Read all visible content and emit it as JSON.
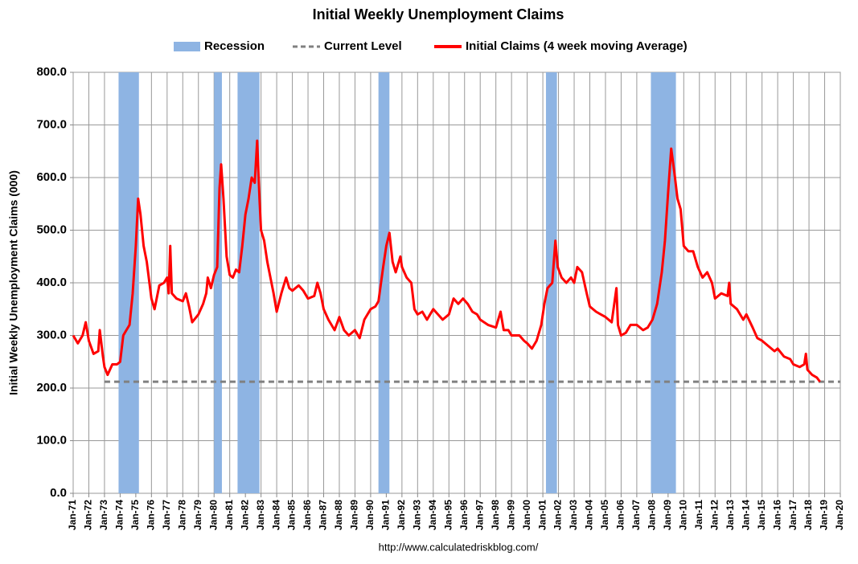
{
  "chart_data": {
    "type": "line",
    "title": "Initial Weekly Unemployment Claims",
    "y_label": "Initial Weekly Unemployment Claims (000)",
    "source": "http://www.calculatedriskblog.com/",
    "xlim": [
      1971,
      2020
    ],
    "xticks": [
      {
        "value": 1971,
        "label": "Jan-71"
      },
      {
        "value": 1972,
        "label": "Jan-72"
      },
      {
        "value": 1973,
        "label": "Jan-73"
      },
      {
        "value": 1974,
        "label": "Jan-74"
      },
      {
        "value": 1975,
        "label": "Jan-75"
      },
      {
        "value": 1976,
        "label": "Jan-76"
      },
      {
        "value": 1977,
        "label": "Jan-77"
      },
      {
        "value": 1978,
        "label": "Jan-78"
      },
      {
        "value": 1979,
        "label": "Jan-79"
      },
      {
        "value": 1980,
        "label": "Jan-80"
      },
      {
        "value": 1981,
        "label": "Jan-81"
      },
      {
        "value": 1982,
        "label": "Jan-82"
      },
      {
        "value": 1983,
        "label": "Jan-83"
      },
      {
        "value": 1984,
        "label": "Jan-84"
      },
      {
        "value": 1985,
        "label": "Jan-85"
      },
      {
        "value": 1986,
        "label": "Jan-86"
      },
      {
        "value": 1987,
        "label": "Jan-87"
      },
      {
        "value": 1988,
        "label": "Jan-88"
      },
      {
        "value": 1989,
        "label": "Jan-89"
      },
      {
        "value": 1990,
        "label": "Jan-90"
      },
      {
        "value": 1991,
        "label": "Jan-91"
      },
      {
        "value": 1992,
        "label": "Jan-92"
      },
      {
        "value": 1993,
        "label": "Jan-93"
      },
      {
        "value": 1994,
        "label": "Jan-94"
      },
      {
        "value": 1995,
        "label": "Jan-95"
      },
      {
        "value": 1996,
        "label": "Jan-96"
      },
      {
        "value": 1997,
        "label": "Jan-97"
      },
      {
        "value": 1998,
        "label": "Jan-98"
      },
      {
        "value": 1999,
        "label": "Jan-99"
      },
      {
        "value": 2000,
        "label": "Jan-00"
      },
      {
        "value": 2001,
        "label": "Jan-01"
      },
      {
        "value": 2002,
        "label": "Jan-02"
      },
      {
        "value": 2003,
        "label": "Jan-03"
      },
      {
        "value": 2004,
        "label": "Jan-04"
      },
      {
        "value": 2005,
        "label": "Jan-05"
      },
      {
        "value": 2006,
        "label": "Jan-06"
      },
      {
        "value": 2007,
        "label": "Jan-07"
      },
      {
        "value": 2008,
        "label": "Jan-08"
      },
      {
        "value": 2009,
        "label": "Jan-09"
      },
      {
        "value": 2010,
        "label": "Jan-10"
      },
      {
        "value": 2011,
        "label": "Jan-11"
      },
      {
        "value": 2012,
        "label": "Jan-12"
      },
      {
        "value": 2013,
        "label": "Jan-13"
      },
      {
        "value": 2014,
        "label": "Jan-14"
      },
      {
        "value": 2015,
        "label": "Jan-15"
      },
      {
        "value": 2016,
        "label": "Jan-16"
      },
      {
        "value": 2017,
        "label": "Jan-17"
      },
      {
        "value": 2018,
        "label": "Jan-18"
      },
      {
        "value": 2019,
        "label": "Jan-19"
      },
      {
        "value": 2020,
        "label": "Jan-20"
      }
    ],
    "ylim": [
      0,
      800
    ],
    "yticks": [
      {
        "value": 0,
        "label": "0.0"
      },
      {
        "value": 100,
        "label": "100.0"
      },
      {
        "value": 200,
        "label": "200.0"
      },
      {
        "value": 300,
        "label": "300.0"
      },
      {
        "value": 400,
        "label": "400.0"
      },
      {
        "value": 500,
        "label": "500.0"
      },
      {
        "value": 600,
        "label": "600.0"
      },
      {
        "value": 700,
        "label": "700.0"
      },
      {
        "value": 800,
        "label": "800.0"
      }
    ],
    "grid": true,
    "recession": {
      "name": "Recession",
      "color": "#8eb4e3",
      "spans": [
        [
          1973.9,
          1975.2
        ],
        [
          1980.0,
          1980.5
        ],
        [
          1981.5,
          1982.9
        ],
        [
          1990.5,
          1991.2
        ],
        [
          2001.2,
          2001.9
        ],
        [
          2007.9,
          2009.5
        ]
      ]
    },
    "current_level": {
      "name": "Current Level",
      "color": "#808080",
      "value": 212,
      "start": 1973
    },
    "series": [
      {
        "name": "Initial Claims (4 week moving Average)",
        "color": "#ff0000",
        "x": [
          1971.0,
          1971.3,
          1971.6,
          1971.8,
          1972.0,
          1972.3,
          1972.6,
          1972.7,
          1972.9,
          1973.0,
          1973.2,
          1973.5,
          1973.8,
          1974.0,
          1974.2,
          1974.4,
          1974.6,
          1974.8,
          1975.0,
          1975.15,
          1975.3,
          1975.5,
          1975.7,
          1976.0,
          1976.2,
          1976.5,
          1976.8,
          1977.0,
          1977.1,
          1977.2,
          1977.3,
          1977.6,
          1978.0,
          1978.2,
          1978.4,
          1978.6,
          1979.0,
          1979.3,
          1979.5,
          1979.6,
          1979.8,
          1980.0,
          1980.2,
          1980.35,
          1980.45,
          1980.6,
          1980.8,
          1981.0,
          1981.2,
          1981.4,
          1981.6,
          1981.8,
          1982.0,
          1982.2,
          1982.4,
          1982.6,
          1982.75,
          1982.9,
          1983.0,
          1983.2,
          1983.4,
          1983.6,
          1983.8,
          1984.0,
          1984.3,
          1984.6,
          1984.8,
          1985.0,
          1985.4,
          1985.7,
          1986.0,
          1986.4,
          1986.6,
          1986.8,
          1987.0,
          1987.3,
          1987.7,
          1988.0,
          1988.3,
          1988.6,
          1989.0,
          1989.3,
          1989.6,
          1990.0,
          1990.3,
          1990.5,
          1990.8,
          1991.0,
          1991.2,
          1991.4,
          1991.6,
          1991.9,
          1992.0,
          1992.3,
          1992.6,
          1992.8,
          1993.0,
          1993.3,
          1993.6,
          1994.0,
          1994.3,
          1994.6,
          1995.0,
          1995.3,
          1995.6,
          1995.9,
          1996.2,
          1996.5,
          1996.8,
          1997.0,
          1997.5,
          1998.0,
          1998.3,
          1998.5,
          1998.8,
          1999.0,
          1999.5,
          1999.8,
          2000.0,
          2000.3,
          2000.6,
          2000.9,
          2001.1,
          2001.3,
          2001.6,
          2001.8,
          2001.95,
          2002.2,
          2002.5,
          2002.8,
          2003.0,
          2003.2,
          2003.5,
          2003.8,
          2004.0,
          2004.4,
          2004.7,
          2005.0,
          2005.4,
          2005.7,
          2005.8,
          2006.0,
          2006.3,
          2006.6,
          2007.0,
          2007.4,
          2007.7,
          2008.0,
          2008.3,
          2008.6,
          2008.8,
          2009.0,
          2009.2,
          2009.4,
          2009.6,
          2009.8,
          2010.0,
          2010.3,
          2010.6,
          2010.9,
          2011.2,
          2011.5,
          2011.8,
          2012.0,
          2012.4,
          2012.8,
          2012.9,
          2013.0,
          2013.4,
          2013.8,
          2014.0,
          2014.4,
          2014.7,
          2015.0,
          2015.4,
          2015.8,
          2016.0,
          2016.4,
          2016.8,
          2017.0,
          2017.4,
          2017.7,
          2017.8,
          2017.9,
          2018.2,
          2018.5,
          2018.7
        ],
        "values": [
          300,
          285,
          300,
          325,
          290,
          265,
          270,
          310,
          260,
          240,
          225,
          245,
          245,
          250,
          300,
          310,
          320,
          380,
          470,
          560,
          530,
          470,
          440,
          370,
          350,
          395,
          400,
          410,
          380,
          470,
          380,
          370,
          365,
          380,
          355,
          325,
          340,
          360,
          380,
          410,
          390,
          415,
          430,
          580,
          625,
          560,
          450,
          415,
          410,
          425,
          420,
          470,
          530,
          560,
          600,
          590,
          670,
          560,
          500,
          480,
          440,
          410,
          380,
          345,
          380,
          410,
          390,
          385,
          395,
          385,
          370,
          375,
          400,
          380,
          350,
          330,
          310,
          335,
          310,
          300,
          310,
          295,
          330,
          350,
          355,
          365,
          430,
          470,
          495,
          440,
          420,
          450,
          430,
          410,
          400,
          350,
          340,
          345,
          330,
          350,
          340,
          330,
          340,
          370,
          360,
          370,
          360,
          345,
          340,
          330,
          320,
          315,
          345,
          310,
          310,
          300,
          300,
          290,
          285,
          275,
          290,
          320,
          360,
          390,
          400,
          480,
          430,
          410,
          400,
          410,
          400,
          430,
          420,
          380,
          355,
          345,
          340,
          335,
          325,
          390,
          320,
          300,
          305,
          320,
          320,
          310,
          315,
          330,
          360,
          420,
          480,
          570,
          655,
          610,
          560,
          540,
          470,
          460,
          460,
          430,
          410,
          420,
          400,
          370,
          380,
          375,
          400,
          360,
          350,
          330,
          340,
          315,
          295,
          290,
          280,
          270,
          275,
          260,
          255,
          245,
          240,
          245,
          265,
          235,
          225,
          220,
          212
        ]
      }
    ]
  }
}
